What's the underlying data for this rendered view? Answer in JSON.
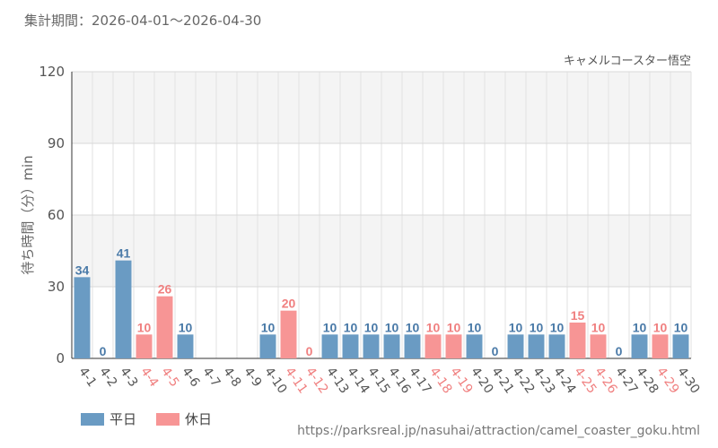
{
  "header": {
    "period_label": "集計期間：2026-04-01〜2026-04-30"
  },
  "chart_data": {
    "type": "bar",
    "attraction": "キャメルコースター悟空",
    "ylabel": "待ち時間（分）min",
    "ylim": [
      0,
      120
    ],
    "yticks": [
      "0",
      "30",
      "60",
      "90",
      "120"
    ],
    "ytick_values": [
      0,
      30,
      60,
      90,
      120
    ],
    "categories": [
      "4-1",
      "4-2",
      "4-3",
      "4-4",
      "4-5",
      "4-6",
      "4-7",
      "4-8",
      "4-9",
      "4-10",
      "4-11",
      "4-12",
      "4-13",
      "4-14",
      "4-15",
      "4-16",
      "4-17",
      "4-18",
      "4-19",
      "4-20",
      "4-21",
      "4-22",
      "4-23",
      "4-24",
      "4-25",
      "4-26",
      "4-27",
      "4-28",
      "4-29",
      "4-30"
    ],
    "values": [
      34,
      0,
      41,
      10,
      26,
      10,
      null,
      null,
      null,
      10,
      20,
      0,
      10,
      10,
      10,
      10,
      10,
      10,
      10,
      10,
      0,
      10,
      10,
      10,
      15,
      10,
      0,
      10,
      10,
      10
    ],
    "day_type": [
      "weekday",
      "weekday",
      "weekday",
      "holiday",
      "holiday",
      "weekday",
      "weekday",
      "weekday",
      "weekday",
      "weekday",
      "holiday",
      "holiday",
      "weekday",
      "weekday",
      "weekday",
      "weekday",
      "weekday",
      "holiday",
      "holiday",
      "weekday",
      "weekday",
      "weekday",
      "weekday",
      "weekday",
      "holiday",
      "holiday",
      "weekday",
      "weekday",
      "holiday",
      "weekday"
    ],
    "grid": true,
    "colors": {
      "weekday": "#6a9bc3",
      "holiday": "#f79595",
      "weekday_label": "#4a7aa8",
      "holiday_label": "#f08080"
    }
  },
  "legend": {
    "weekday_label": "平日",
    "holiday_label": "休日"
  },
  "footer": {
    "source_url": "https://parksreal.jp/nasuhai/attraction/camel_coaster_goku.html"
  }
}
